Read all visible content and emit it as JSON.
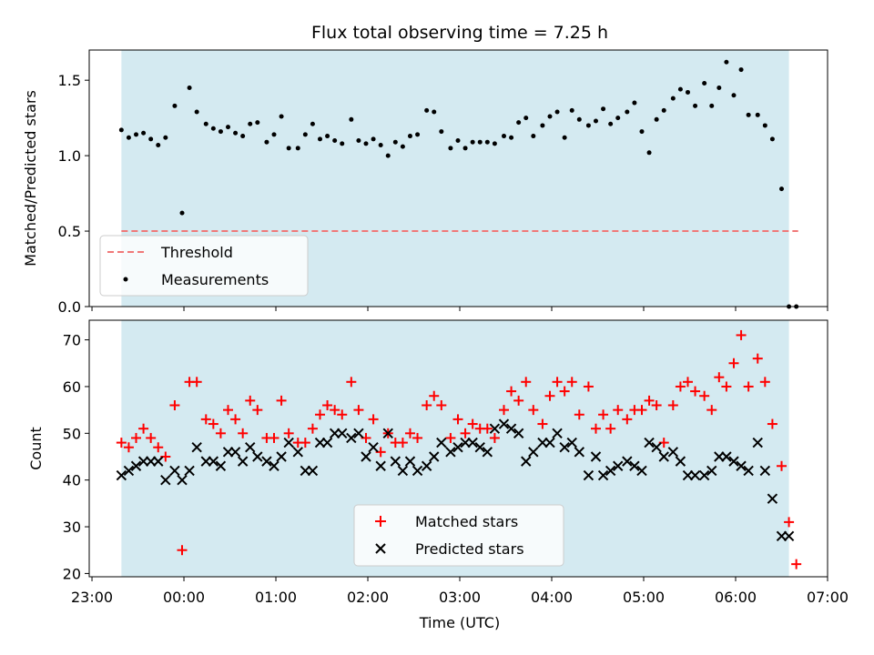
{
  "chart_data": {
    "title": "Flux total observing time = 7.25 h",
    "type": "scatter",
    "shared_x": {
      "label": "Time (UTC)",
      "xlim": [
        22.97,
        31.0
      ],
      "ticks": [
        23,
        24,
        25,
        26,
        27,
        28,
        29,
        30,
        31
      ],
      "tick_labels": [
        "23:00",
        "00:00",
        "01:00",
        "02:00",
        "03:00",
        "04:00",
        "05:00",
        "06:00",
        "07:00"
      ]
    },
    "observing_window": {
      "start": 23.32,
      "end": 30.58,
      "color": "#d4eaf1"
    },
    "top": {
      "ylabel": "Matched/Predicted stars",
      "ylim": [
        0,
        1.7
      ],
      "yticks": [
        0.0,
        0.5,
        1.0,
        1.5
      ],
      "ytick_labels": [
        "0.0",
        "0.5",
        "1.0",
        "1.5"
      ],
      "threshold": {
        "name": "Threshold",
        "value": 0.5,
        "x_range": [
          23.32,
          30.68
        ],
        "color": "#f07878"
      },
      "measurements": {
        "name": "Measurements",
        "color": "#000000",
        "x": [
          23.32,
          23.4,
          23.48,
          23.56,
          23.64,
          23.72,
          23.8,
          23.9,
          23.98,
          24.06,
          24.14,
          24.24,
          24.32,
          24.4,
          24.48,
          24.56,
          24.64,
          24.72,
          24.8,
          24.9,
          24.98,
          25.06,
          25.14,
          25.24,
          25.32,
          25.4,
          25.48,
          25.56,
          25.64,
          25.72,
          25.82,
          25.9,
          25.98,
          26.06,
          26.14,
          26.22,
          26.3,
          26.38,
          26.46,
          26.54,
          26.64,
          26.72,
          26.8,
          26.9,
          26.98,
          27.06,
          27.14,
          27.22,
          27.3,
          27.38,
          27.48,
          27.56,
          27.64,
          27.72,
          27.8,
          27.9,
          27.98,
          28.06,
          28.14,
          28.22,
          28.3,
          28.4,
          28.48,
          28.56,
          28.64,
          28.72,
          28.82,
          28.9,
          28.98,
          29.06,
          29.14,
          29.22,
          29.32,
          29.4,
          29.48,
          29.56,
          29.66,
          29.74,
          29.82,
          29.9,
          29.98,
          30.06,
          30.14,
          30.24,
          30.32,
          30.4,
          30.5,
          30.58,
          30.66
        ],
        "y": [
          1.17,
          1.12,
          1.14,
          1.15,
          1.11,
          1.07,
          1.12,
          1.33,
          0.62,
          1.45,
          1.29,
          1.21,
          1.18,
          1.16,
          1.19,
          1.15,
          1.13,
          1.21,
          1.22,
          1.09,
          1.14,
          1.26,
          1.05,
          1.05,
          1.14,
          1.21,
          1.11,
          1.13,
          1.1,
          1.08,
          1.24,
          1.1,
          1.08,
          1.11,
          1.07,
          1.0,
          1.09,
          1.06,
          1.13,
          1.14,
          1.3,
          1.29,
          1.16,
          1.05,
          1.1,
          1.05,
          1.09,
          1.09,
          1.09,
          1.08,
          1.13,
          1.12,
          1.22,
          1.25,
          1.13,
          1.2,
          1.26,
          1.29,
          1.12,
          1.3,
          1.24,
          1.2,
          1.23,
          1.31,
          1.21,
          1.25,
          1.29,
          1.35,
          1.16,
          1.02,
          1.24,
          1.3,
          1.38,
          1.44,
          1.42,
          1.33,
          1.48,
          1.33,
          1.45,
          1.62,
          1.4,
          1.57,
          1.27,
          1.27,
          1.2,
          1.11,
          0.78,
          0.0,
          0.0
        ]
      }
    },
    "bottom": {
      "ylabel": "Count",
      "ylim": [
        19.3,
        74.2
      ],
      "yticks": [
        20,
        30,
        40,
        50,
        60,
        70
      ],
      "ytick_labels": [
        "20",
        "30",
        "40",
        "50",
        "60",
        "70"
      ],
      "series": [
        {
          "name": "Matched stars",
          "marker": "plus",
          "color": "#ff0000",
          "x": [
            23.32,
            23.4,
            23.48,
            23.56,
            23.64,
            23.72,
            23.8,
            23.9,
            23.98,
            24.06,
            24.14,
            24.24,
            24.32,
            24.4,
            24.48,
            24.56,
            24.64,
            24.72,
            24.8,
            24.9,
            24.98,
            25.06,
            25.14,
            25.24,
            25.32,
            25.4,
            25.48,
            25.56,
            25.64,
            25.72,
            25.82,
            25.9,
            25.98,
            26.06,
            26.14,
            26.22,
            26.3,
            26.38,
            26.46,
            26.54,
            26.64,
            26.72,
            26.8,
            26.9,
            26.98,
            27.06,
            27.14,
            27.22,
            27.3,
            27.38,
            27.48,
            27.56,
            27.64,
            27.72,
            27.8,
            27.9,
            27.98,
            28.06,
            28.14,
            28.22,
            28.3,
            28.4,
            28.48,
            28.56,
            28.64,
            28.72,
            28.82,
            28.9,
            28.98,
            29.06,
            29.14,
            29.22,
            29.32,
            29.4,
            29.48,
            29.56,
            29.66,
            29.74,
            29.82,
            29.9,
            29.98,
            30.06,
            30.14,
            30.24,
            30.32,
            30.4,
            30.5,
            30.58,
            30.66
          ],
          "y": [
            48,
            47,
            49,
            51,
            49,
            47,
            45,
            56,
            25,
            61,
            61,
            53,
            52,
            50,
            55,
            53,
            50,
            57,
            55,
            49,
            49,
            57,
            50,
            48,
            48,
            51,
            54,
            56,
            55,
            54,
            61,
            55,
            49,
            53,
            46,
            50,
            48,
            48,
            50,
            49,
            56,
            58,
            56,
            49,
            53,
            50,
            52,
            51,
            51,
            49,
            55,
            59,
            57,
            61,
            55,
            52,
            58,
            61,
            59,
            61,
            54,
            60,
            51,
            54,
            51,
            55,
            53,
            55,
            55,
            57,
            56,
            48,
            56,
            60,
            61,
            59,
            58,
            55,
            62,
            60,
            65,
            71,
            60,
            66,
            61,
            52,
            43,
            31,
            22
          ]
        },
        {
          "name": "Predicted stars",
          "marker": "x",
          "color": "#000000",
          "x": [
            23.32,
            23.4,
            23.48,
            23.56,
            23.64,
            23.72,
            23.8,
            23.9,
            23.98,
            24.06,
            24.14,
            24.24,
            24.32,
            24.4,
            24.48,
            24.56,
            24.64,
            24.72,
            24.8,
            24.9,
            24.98,
            25.06,
            25.14,
            25.24,
            25.32,
            25.4,
            25.48,
            25.56,
            25.64,
            25.72,
            25.82,
            25.9,
            25.98,
            26.06,
            26.14,
            26.22,
            26.3,
            26.38,
            26.46,
            26.54,
            26.64,
            26.72,
            26.8,
            26.9,
            26.98,
            27.06,
            27.14,
            27.22,
            27.3,
            27.38,
            27.48,
            27.56,
            27.64,
            27.72,
            27.8,
            27.9,
            27.98,
            28.06,
            28.14,
            28.22,
            28.3,
            28.4,
            28.48,
            28.56,
            28.64,
            28.72,
            28.82,
            28.9,
            28.98,
            29.06,
            29.14,
            29.22,
            29.32,
            29.4,
            29.48,
            29.56,
            29.66,
            29.74,
            29.82,
            29.9,
            29.98,
            30.06,
            30.14,
            30.24,
            30.32,
            30.4,
            30.5,
            30.58
          ],
          "y": [
            41,
            42,
            43,
            44,
            44,
            44,
            40,
            42,
            40,
            42,
            47,
            44,
            44,
            43,
            46,
            46,
            44,
            47,
            45,
            44,
            43,
            45,
            48,
            46,
            42,
            42,
            48,
            48,
            50,
            50,
            49,
            50,
            45,
            47,
            43,
            50,
            44,
            42,
            44,
            42,
            43,
            45,
            48,
            46,
            47,
            48,
            48,
            47,
            46,
            51,
            52,
            51,
            50,
            44,
            46,
            48,
            48,
            50,
            47,
            48,
            46,
            41,
            45,
            41,
            42,
            43,
            44,
            43,
            42,
            48,
            47,
            45,
            46,
            44,
            41,
            41,
            41,
            42,
            45,
            45,
            44,
            43,
            42,
            48,
            42,
            36,
            28,
            28
          ]
        }
      ]
    }
  }
}
